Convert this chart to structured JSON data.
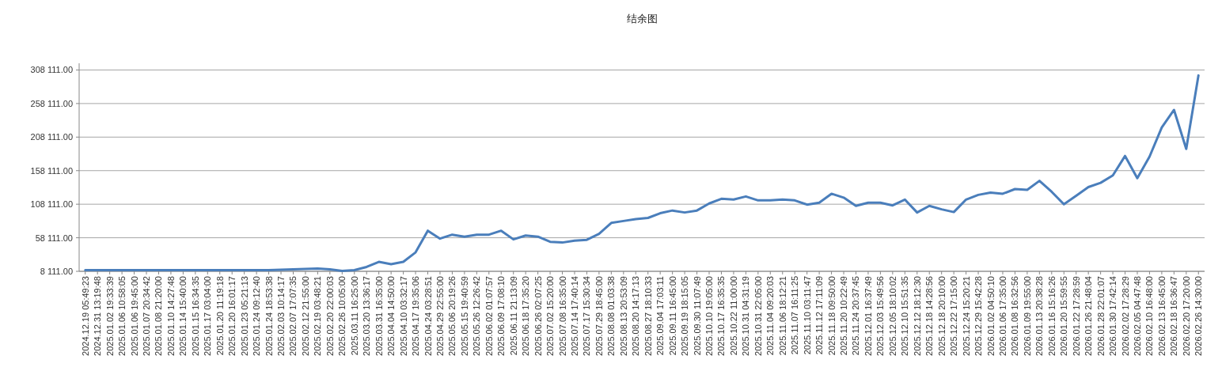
{
  "chart_data": {
    "type": "line",
    "title": "结余图",
    "categories": [
      "2024.12.19 05:49:23",
      "2024.12.31 13:19:48",
      "2025.01.02 19:33:39",
      "2025.01.06 10:58:05",
      "2025.01.06 19:45:00",
      "2025.01.07 20:34:42",
      "2025.01.08 21:20:00",
      "2025.01.10 14:27:48",
      "2025.01.14 15:40:00",
      "2025.01.15 16:34:35",
      "2025.01.17 03:04:00",
      "2025.01.20 11:19:18",
      "2025.01.20 16:01:17",
      "2025.01.23 05:21:13",
      "2025.01.24 09:12:40",
      "2025.01.24 18:53:38",
      "2025.02.03 10:14:17",
      "2025.02.07 17:07:35",
      "2025.02.12 21:55:00",
      "2025.02.19 03:48:21",
      "2025.02.20 22:00:03",
      "2025.02.26 10:05:00",
      "2025.03.11 16:25:00",
      "2025.03.20 13:36:17",
      "2025.03.31 16:35:00",
      "2025.04.04 14:50:00",
      "2025.04.10 03:32:17",
      "2025.04.17 19:35:06",
      "2025.04.24 03:28:51",
      "2025.04.29 22:55:00",
      "2025.05.06 20:19:26",
      "2025.05.15 19:40:59",
      "2025.05.26 12:26:42",
      "2025.06.02 01:07:57",
      "2025.06.09 17:08:10",
      "2025.06.11 21:13:09",
      "2025.06.18 17:35:20",
      "2025.06.26 02:07:25",
      "2025.07.02 15:20:00",
      "2025.07.08 16:35:00",
      "2025.07.14 17:40:14",
      "2025.07.17 15:30:34",
      "2025.07.29 18:45:00",
      "2025.08.08 01:03:38",
      "2025.08.13 20:53:09",
      "2025.08.20 14:17:13",
      "2025.08.27 18:10:33",
      "2025.09.04 17:03:11",
      "2025.09.11 16:45:00",
      "2025.09.19 18:15:05",
      "2025.09.30 11:07:49",
      "2025.10.10 19:05:00",
      "2025.10.17 16:35:35",
      "2025.10.22 11:00:00",
      "2025.10.31 04:31:19",
      "2025.10.31 22:05:00",
      "2025.11.04 09:20:03",
      "2025.11.06 18:12:21",
      "2025.11.07 16:11:25",
      "2025.11.10 03:11:47",
      "2025.11.12 17:11:09",
      "2025.11.18 09:50:00",
      "2025.11.20 10:22:49",
      "2025.11.24 20:37:45",
      "2025.12.01 16:37:49",
      "2025.12.03 15:49:56",
      "2025.12.05 18:10:02",
      "2025.12.10 15:51:35",
      "2025.12.12 18:12:30",
      "2025.12.18 14:28:56",
      "2025.12.18 20:10:00",
      "2025.12.22 17:15:00",
      "2025.12.24 15:20:21",
      "2025.12.29 15:42:28",
      "2026.01.02 04:50:10",
      "2026.01.06 17:35:00",
      "2026.01.08 16:32:56",
      "2026.01.09 19:55:00",
      "2026.01.13 20:38:28",
      "2026.01.16 15:16:26",
      "2026.01.20 15:59:55",
      "2026.01.22 17:28:59",
      "2026.01.26 21:48:04",
      "2026.01.28 22:01:07",
      "2026.01.30 17:42:14",
      "2026.02.02 17:28:29",
      "2026.02.05 04:47:48",
      "2026.02.10 16:48:00",
      "2026.02.13 16:45:00",
      "2026.02.18 16:36:47",
      "2026.02.20 17:20:00",
      "2026.02.26 14:30:00"
    ],
    "series": [
      {
        "color": "#4a7ebb",
        "values": [
          10000,
          10000,
          10000,
          10000,
          10000,
          10000,
          10000,
          10000,
          10000,
          10000,
          10000,
          10000,
          10000,
          10000,
          10000,
          10000,
          10500,
          11000,
          11500,
          12200,
          11000,
          8700,
          9900,
          14600,
          22200,
          18700,
          22200,
          36300,
          68600,
          56800,
          62700,
          59800,
          62700,
          62700,
          68600,
          55700,
          61500,
          59800,
          52100,
          51000,
          53900,
          55100,
          63900,
          80300,
          83100,
          86000,
          87700,
          94700,
          98700,
          95800,
          98700,
          109200,
          116200,
          115000,
          119700,
          113800,
          113800,
          115000,
          113800,
          107500,
          110400,
          123700,
          117900,
          105700,
          110400,
          110400,
          106300,
          115000,
          95800,
          105700,
          100500,
          96400,
          115000,
          122000,
          125500,
          123700,
          130700,
          129500,
          142900,
          126600,
          108000,
          120800,
          133600,
          140000,
          151000,
          180000,
          147000,
          179000,
          222500,
          248600,
          190500,
          300000
        ]
      }
    ],
    "ylim": [
      8111,
      318111
    ],
    "yticks": [
      {
        "value": 8111,
        "label": "8 111.00"
      },
      {
        "value": 58111,
        "label": "58 111.00"
      },
      {
        "value": 108111,
        "label": "108 111.00"
      },
      {
        "value": 158111,
        "label": "158 111.00"
      },
      {
        "value": 208111,
        "label": "208 111.00"
      },
      {
        "value": 258111,
        "label": "258 111.00"
      },
      {
        "value": 308111,
        "label": "308 111.00"
      }
    ],
    "grid": "y",
    "marker": "none",
    "line_style": "solid"
  }
}
